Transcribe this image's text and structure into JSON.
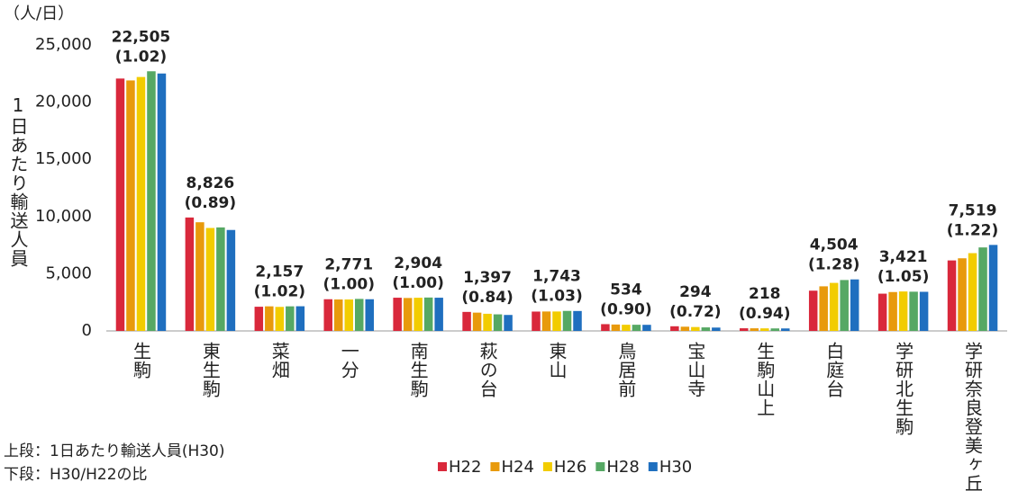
{
  "chart_data": {
    "type": "bar",
    "unit_label": "（人/日）",
    "y_axis_label": "1日あたり輸送人員",
    "notes": [
      "上段：1日あたり輸送人員(H30)",
      "下段：H30/H22の比"
    ],
    "categories": [
      "生駒",
      "東生駒",
      "菜畑",
      "一分",
      "南生駒",
      "萩の台",
      "東山",
      "鳥居前",
      "宝山寺",
      "生駒山上",
      "白庭台",
      "学研北生駒",
      "学研奈良登美ヶ丘"
    ],
    "series": [
      {
        "name": "H22",
        "color": "#d9283b",
        "values": [
          22064,
          9917,
          2115,
          2771,
          2904,
          1663,
          1692,
          593,
          408,
          232,
          3519,
          3258,
          6163
        ]
      },
      {
        "name": "H24",
        "color": "#e89a0c",
        "values": [
          21900,
          9500,
          2150,
          2750,
          2880,
          1600,
          1700,
          560,
          370,
          230,
          3900,
          3400,
          6350
        ]
      },
      {
        "name": "H26",
        "color": "#f2cc00",
        "values": [
          22200,
          9000,
          2100,
          2750,
          2900,
          1500,
          1700,
          540,
          340,
          225,
          4200,
          3450,
          6800
        ]
      },
      {
        "name": "H28",
        "color": "#56a864",
        "values": [
          22700,
          9050,
          2150,
          2800,
          2920,
          1450,
          1750,
          540,
          310,
          220,
          4450,
          3430,
          7300
        ]
      },
      {
        "name": "H30",
        "color": "#1f6fbf",
        "values": [
          22505,
          8826,
          2157,
          2771,
          2904,
          1397,
          1743,
          534,
          294,
          218,
          4504,
          3421,
          7519
        ],
        "value_labels": [
          "22,505",
          "8,826",
          "2,157",
          "2,771",
          "2,904",
          "1,397",
          "1,743",
          "534",
          "294",
          "218",
          "4,504",
          "3,421",
          "7,519"
        ]
      }
    ],
    "ratio_values": [
      1.02,
      0.89,
      1.02,
      1.0,
      1.0,
      0.84,
      1.03,
      0.9,
      0.72,
      0.94,
      1.28,
      1.05,
      1.22
    ],
    "ratio_labels": [
      "(1.02)",
      "(0.89)",
      "(1.02)",
      "(1.00)",
      "(1.00)",
      "(0.84)",
      "(1.03)",
      "(0.90)",
      "(0.72)",
      "(0.94)",
      "(1.28)",
      "(1.05)",
      "(1.22)"
    ],
    "ylim": [
      0,
      25000
    ],
    "yticks": [
      0,
      {
        "value": 5000,
        "label": "5,000"
      },
      {
        "value": 10000,
        "label": "10,000"
      },
      {
        "value": 15000,
        "label": "15,000"
      },
      {
        "value": 20000,
        "label": "20,000"
      },
      {
        "value": 25000,
        "label": "25,000"
      }
    ],
    "grid": false,
    "legend": "bottom"
  }
}
